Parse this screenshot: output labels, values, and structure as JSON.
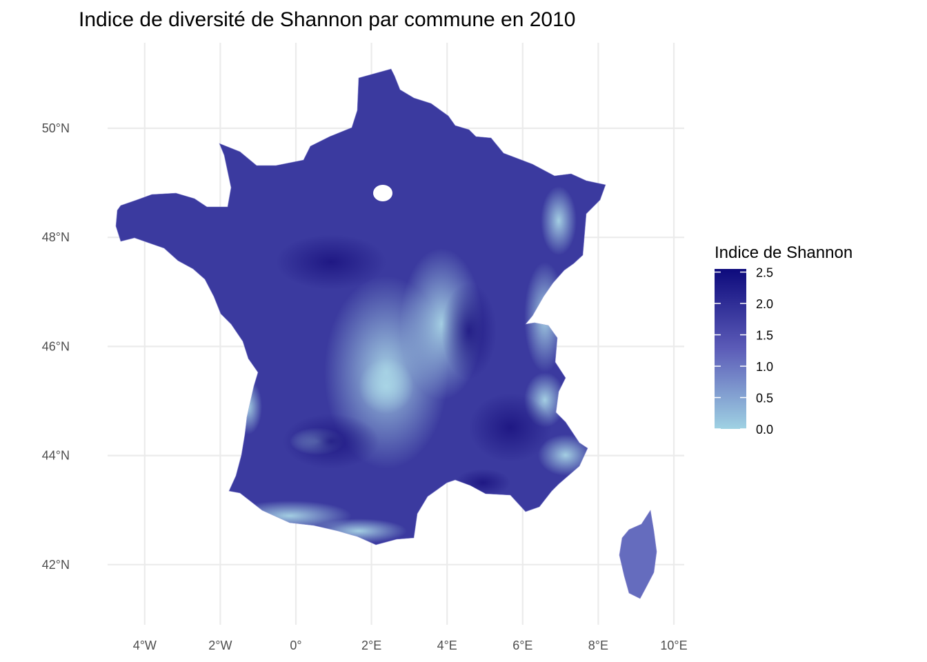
{
  "chart_data": {
    "type": "choropleth-map",
    "title": "Indice de diversité de Shannon par commune en 2010",
    "x_ticks": [
      "4°W",
      "2°W",
      "0°",
      "2°E",
      "4°E",
      "6°E",
      "8°E",
      "10°E"
    ],
    "x_tick_values": [
      -4,
      -2,
      0,
      2,
      4,
      6,
      8,
      10
    ],
    "y_ticks": [
      "50°N",
      "48°N",
      "46°N",
      "44°N",
      "42°N"
    ],
    "y_tick_values": [
      50,
      48,
      46,
      44,
      42
    ],
    "xlim": [
      -5.2,
      10.3
    ],
    "ylim": [
      41.0,
      51.3
    ],
    "grid": true,
    "legend": {
      "title": "Indice de Shannon",
      "placement": "right",
      "labels": [
        "2.5",
        "2.0",
        "1.5",
        "1.0",
        "0.5",
        "0.0"
      ],
      "values": [
        2.5,
        2.0,
        1.5,
        1.0,
        0.5,
        0.0
      ],
      "range": [
        0.0,
        2.55
      ],
      "color_low": "#9fd2e3",
      "color_mid": "#5c5cb8",
      "color_high": "#0d0a7c"
    },
    "regions": [
      {
        "name": "mainland-france",
        "shannon": 1.8
      },
      {
        "name": "corsica",
        "shannon": 1.1
      }
    ]
  }
}
